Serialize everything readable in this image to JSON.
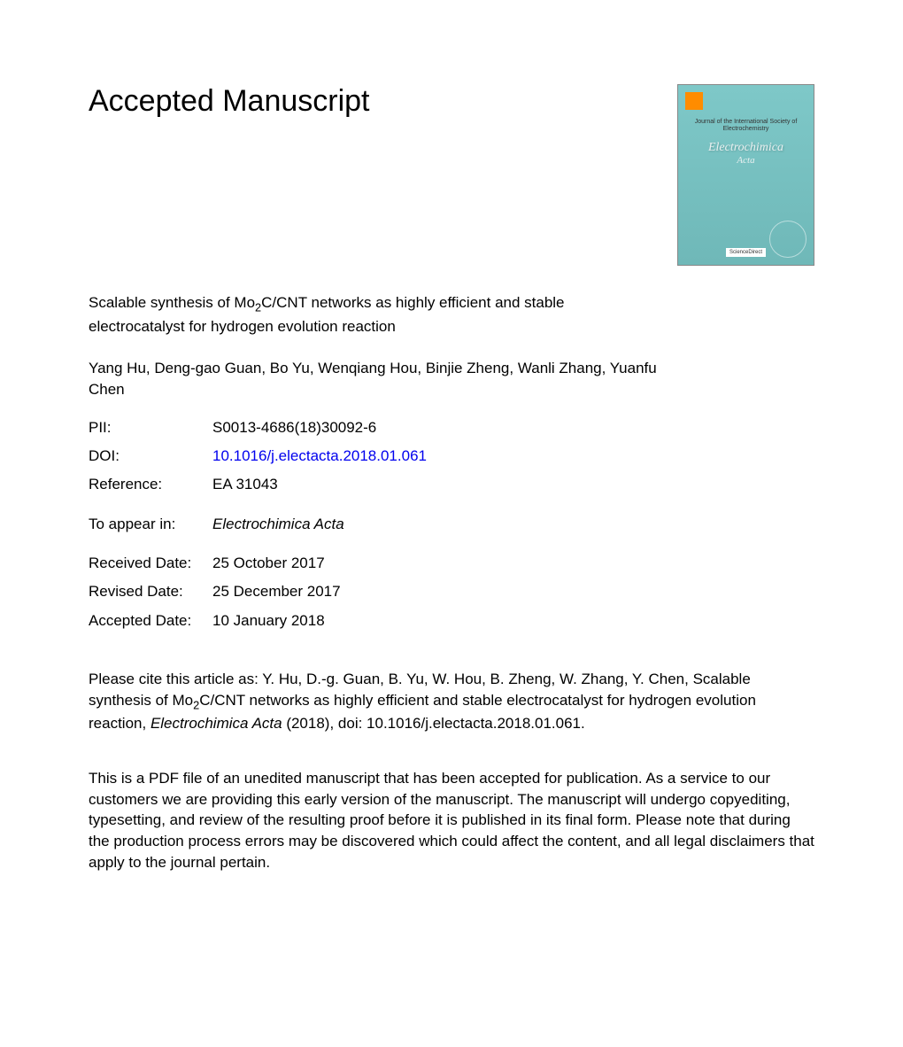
{
  "heading": "Accepted Manuscript",
  "article_title_prefix": "Scalable synthesis of Mo",
  "article_title_sub": "2",
  "article_title_suffix": "C/CNT networks as highly efficient and stable electrocatalyst for hydrogen evolution reaction",
  "authors": "Yang Hu, Deng-gao Guan, Bo Yu, Wenqiang Hou, Binjie Zheng, Wanli Zhang, Yuanfu Chen",
  "meta": {
    "pii": {
      "label": "PII:",
      "value": "S0013-4686(18)30092-6"
    },
    "doi": {
      "label": "DOI:",
      "value": "10.1016/j.electacta.2018.01.061"
    },
    "reference": {
      "label": "Reference:",
      "value": "EA 31043"
    },
    "to_appear": {
      "label": "To appear in:",
      "value": "Electrochimica Acta"
    },
    "received": {
      "label": "Received Date:",
      "value": "25 October 2017"
    },
    "revised": {
      "label": "Revised Date:",
      "value": "25 December 2017"
    },
    "accepted": {
      "label": "Accepted Date:",
      "value": "10 January 2018"
    }
  },
  "citation": {
    "prefix": "Please cite this article as: Y. Hu, D.-g. Guan, B. Yu, W. Hou, B. Zheng, W. Zhang, Y. Chen, Scalable synthesis of Mo",
    "sub": "2",
    "mid": "C/CNT networks as highly efficient and stable electrocatalyst for hydrogen evolution reaction, ",
    "journal": "Electrochimica Acta",
    "suffix": " (2018), doi: 10.1016/j.electacta.2018.01.061."
  },
  "disclaimer": "This is a PDF file of an unedited manuscript that has been accepted for publication. As a service to our customers we are providing this early version of the manuscript. The manuscript will undergo copyediting, typesetting, and review of the resulting proof before it is published in its final form. Please note that during the production process errors may be discovered which could affect the content, and all legal disclaimers that apply to the journal pertain.",
  "cover": {
    "heading": "Journal of the International Society of Electrochemistry",
    "title": "Electrochimica",
    "subtitle": "Acta",
    "bottom": "ScienceDirect"
  },
  "colors": {
    "text": "#000000",
    "link": "#0000ee",
    "cover_bg_top": "#7ec8c8",
    "cover_bg_bottom": "#6fb8b8",
    "background": "#ffffff"
  },
  "typography": {
    "heading_fontsize": 34,
    "body_fontsize": 17,
    "font_family": "Arial, Helvetica, sans-serif"
  }
}
